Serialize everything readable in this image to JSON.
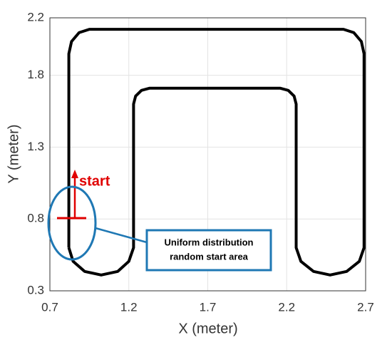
{
  "chart_data": {
    "type": "line",
    "xlabel": "X (meter)",
    "ylabel": "Y (meter)",
    "xlim": [
      0.7,
      2.7
    ],
    "xticks": [
      0.7,
      1.2,
      1.7,
      2.2,
      2.7
    ],
    "ylim": [
      0.3,
      2.2
    ],
    "yticks": [
      0.3,
      0.8,
      1.3,
      1.8,
      2.2
    ],
    "grid": true,
    "color": "#000000",
    "x": [
      0.82,
      0.82,
      0.837,
      0.885,
      0.95,
      2.56,
      2.625,
      2.673,
      2.69,
      2.69,
      2.66,
      2.58,
      2.475,
      2.37,
      2.29,
      2.26,
      2.26,
      2.247,
      2.21,
      2.16,
      1.33,
      1.28,
      1.243,
      1.23,
      1.23,
      1.2,
      1.13,
      1.025,
      0.92,
      0.847,
      0.82
    ],
    "values": [
      0.6,
      1.95,
      2.035,
      2.097,
      2.12,
      2.12,
      2.097,
      2.035,
      1.95,
      0.6,
      0.505,
      0.435,
      0.41,
      0.435,
      0.505,
      0.6,
      1.6,
      1.655,
      1.695,
      1.71,
      1.71,
      1.695,
      1.655,
      1.6,
      0.6,
      0.505,
      0.435,
      0.41,
      0.435,
      0.505,
      0.6
    ],
    "annotations": [
      "start",
      "Uniform distribution",
      "random start area"
    ]
  }
}
